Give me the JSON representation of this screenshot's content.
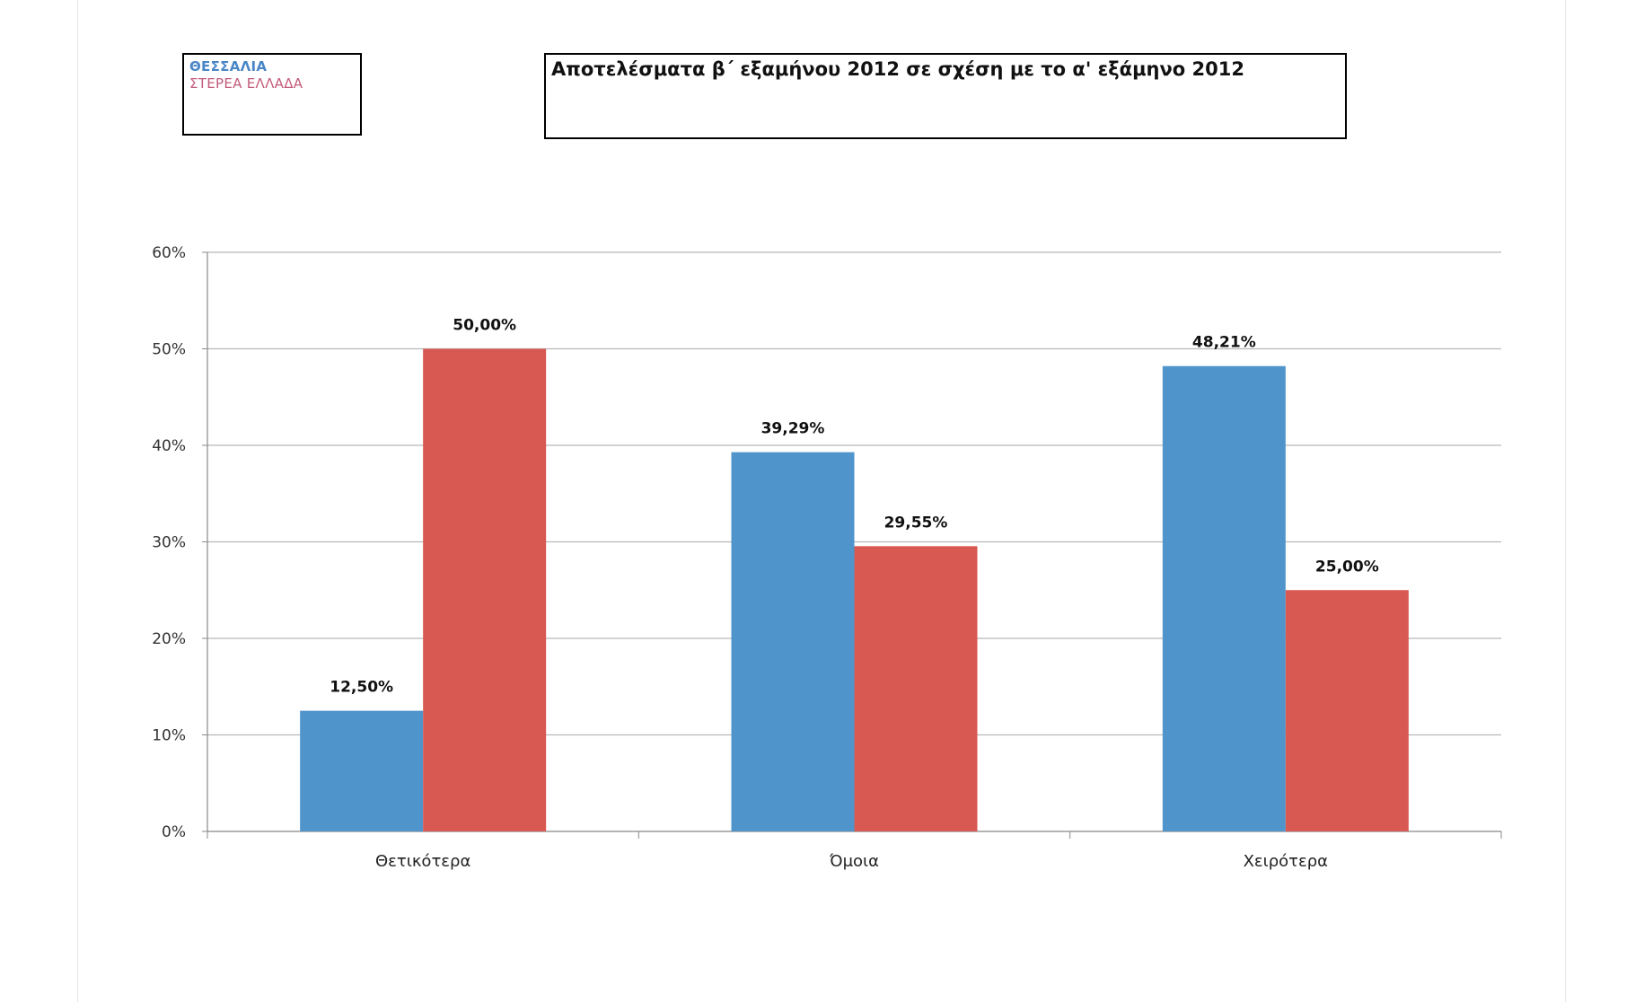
{
  "legend": {
    "entries": [
      "ΘΕΣΣΑΛΙΑ",
      "ΣΤΕΡΕΑ ΕΛΛΑΔΑ"
    ]
  },
  "chart_data": {
    "type": "bar",
    "title": "Αποτελέσματα β΄ εξαμήνου 2012 σε σχέση με το α' εξάμηνο 2012",
    "categories": [
      "Θετικότερα",
      "Όμοια",
      "Χειρότερα"
    ],
    "series": [
      {
        "name": "ΘΕΣΣΑΛΙΑ",
        "color": "#4f94cb",
        "values": [
          12.5,
          39.29,
          48.21
        ],
        "labels": [
          "12,50%",
          "39,29%",
          "48,21%"
        ]
      },
      {
        "name": "ΣΤΕΡΕΑ ΕΛΛΑΔΑ",
        "color": "#d85852",
        "values": [
          50.0,
          29.55,
          25.0
        ],
        "labels": [
          "50,00%",
          "29,55%",
          "25,00%"
        ]
      }
    ],
    "ylim": [
      0,
      60
    ],
    "yticks": [
      "0%",
      "10%",
      "20%",
      "30%",
      "40%",
      "50%",
      "60%"
    ],
    "grid": true,
    "xlabel": "",
    "ylabel": ""
  }
}
